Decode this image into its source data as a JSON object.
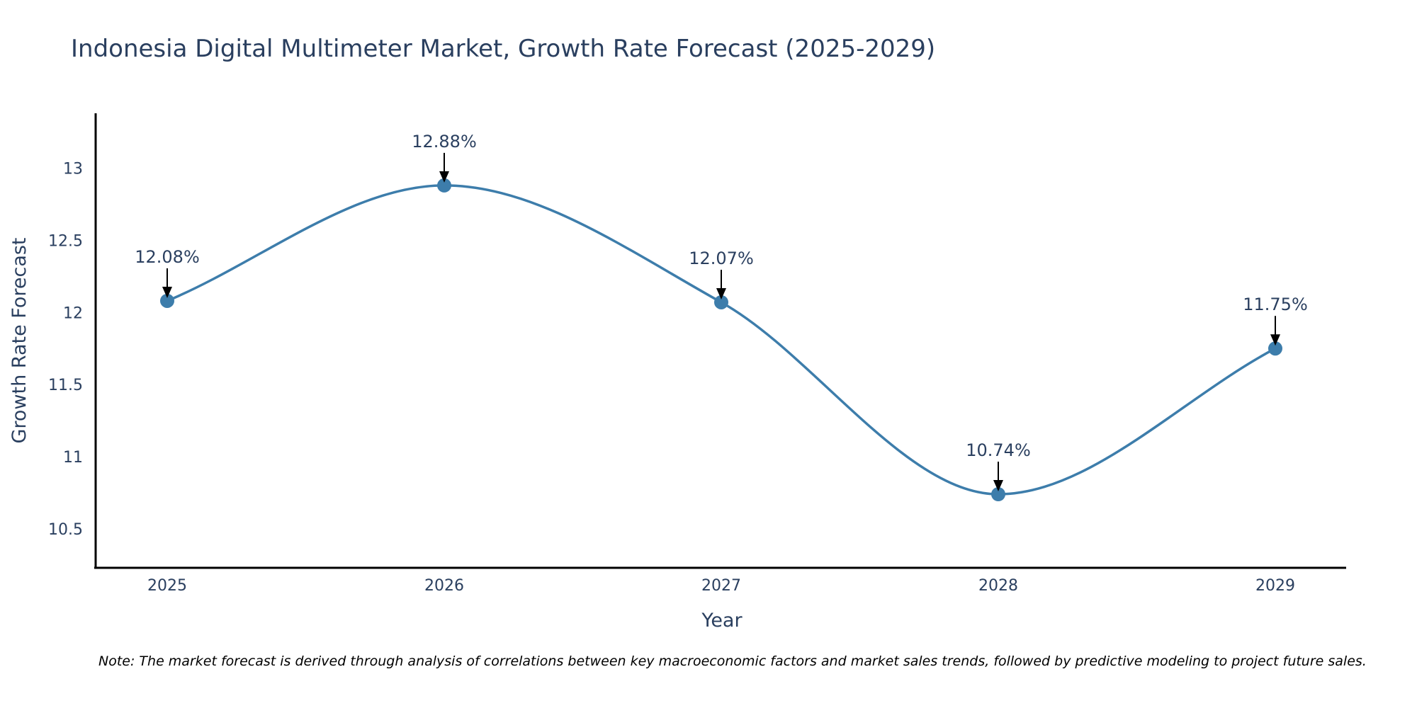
{
  "chart_data": {
    "type": "line",
    "title": "Indonesia Digital Multimeter Market, Growth Rate Forecast (2025-2029)",
    "xlabel": "Year",
    "ylabel": "Growth Rate Forecast",
    "categories": [
      "2025",
      "2026",
      "2027",
      "2028",
      "2029"
    ],
    "series": [
      {
        "name": "Growth Rate Forecast",
        "values": [
          12.08,
          12.88,
          12.07,
          10.74,
          11.75
        ]
      }
    ],
    "data_labels": [
      "12.08%",
      "12.88%",
      "12.07%",
      "10.74%",
      "11.75%"
    ],
    "y_ticks": [
      {
        "value": 10.5,
        "label": "10.5"
      },
      {
        "value": 11,
        "label": "11"
      },
      {
        "value": 11.5,
        "label": "11.5"
      },
      {
        "value": 12,
        "label": "12"
      },
      {
        "value": 12.5,
        "label": "12.5"
      },
      {
        "value": 13,
        "label": "13"
      }
    ],
    "ylim": [
      10.23,
      13.38
    ],
    "grid": false,
    "line_color": "#3d7dab",
    "marker_color": "#3d7dab",
    "note": "Note: The market forecast is derived through analysis of correlations between key macroeconomic factors and market sales trends, followed by predictive modeling to project future sales."
  }
}
